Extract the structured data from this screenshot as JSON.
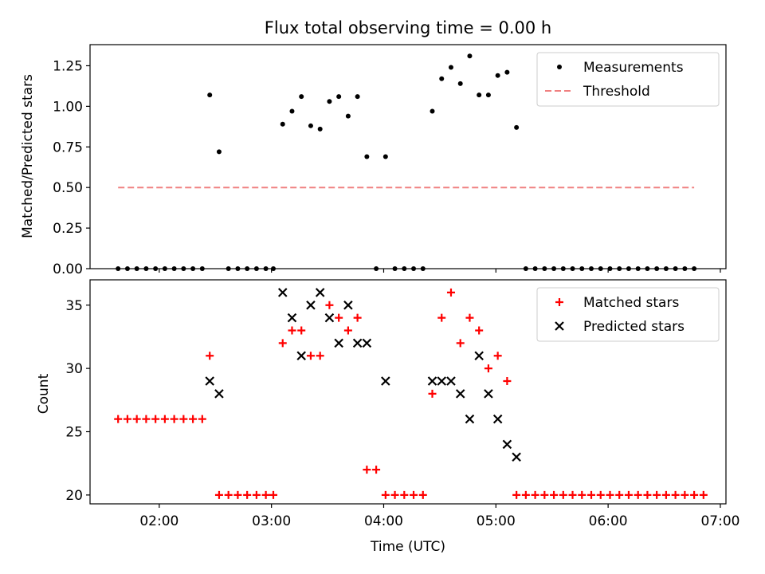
{
  "chart_data": [
    {
      "type": "scatter",
      "title": "Flux total observing time = 0.00 h",
      "xlabel": "",
      "ylabel": "Matched/Predicted stars",
      "xlim": [
        "01:23",
        "07:03"
      ],
      "ylim": [
        0,
        1.38
      ],
      "xticks": [
        "02:00",
        "03:00",
        "04:00",
        "05:00",
        "06:00",
        "07:00"
      ],
      "yticks": [
        0.0,
        0.25,
        0.5,
        0.75,
        1.0,
        1.25
      ],
      "ytick_labels": [
        "0.00",
        "0.25",
        "0.50",
        "0.75",
        "1.00",
        "1.25"
      ],
      "legend": "top-right",
      "grid": false,
      "series": [
        {
          "name": "Measurements",
          "marker": "dot",
          "color": "#000000",
          "points": [
            [
              "01:38",
              0
            ],
            [
              "01:43",
              0
            ],
            [
              "01:48",
              0
            ],
            [
              "01:53",
              0
            ],
            [
              "01:58",
              0
            ],
            [
              "02:03",
              0
            ],
            [
              "02:08",
              0
            ],
            [
              "02:13",
              0
            ],
            [
              "02:18",
              0
            ],
            [
              "02:23",
              0
            ],
            [
              "02:27",
              1.07
            ],
            [
              "02:32",
              0.72
            ],
            [
              "02:37",
              0
            ],
            [
              "02:42",
              0
            ],
            [
              "02:47",
              0
            ],
            [
              "02:52",
              0
            ],
            [
              "02:57",
              0
            ],
            [
              "03:01",
              0
            ],
            [
              "03:06",
              0.89
            ],
            [
              "03:11",
              0.97
            ],
            [
              "03:16",
              1.06
            ],
            [
              "03:21",
              0.88
            ],
            [
              "03:26",
              0.86
            ],
            [
              "03:31",
              1.03
            ],
            [
              "03:36",
              1.06
            ],
            [
              "03:41",
              0.94
            ],
            [
              "03:46",
              1.06
            ],
            [
              "03:51",
              0.69
            ],
            [
              "03:56",
              0
            ],
            [
              "04:01",
              0.69
            ],
            [
              "04:06",
              0
            ],
            [
              "04:11",
              0
            ],
            [
              "04:16",
              0
            ],
            [
              "04:21",
              0
            ],
            [
              "04:26",
              0.97
            ],
            [
              "04:31",
              1.17
            ],
            [
              "04:36",
              1.24
            ],
            [
              "04:41",
              1.14
            ],
            [
              "04:46",
              1.31
            ],
            [
              "04:51",
              1.07
            ],
            [
              "04:56",
              1.07
            ],
            [
              "05:01",
              1.19
            ],
            [
              "05:06",
              1.21
            ],
            [
              "05:11",
              0.87
            ],
            [
              "05:16",
              0
            ],
            [
              "05:21",
              0
            ],
            [
              "05:26",
              0
            ],
            [
              "05:31",
              0
            ],
            [
              "05:36",
              0
            ],
            [
              "05:41",
              0
            ],
            [
              "05:46",
              0
            ],
            [
              "05:51",
              0
            ],
            [
              "05:56",
              0
            ],
            [
              "06:01",
              0
            ],
            [
              "06:06",
              0
            ],
            [
              "06:11",
              0
            ],
            [
              "06:16",
              0
            ],
            [
              "06:21",
              0
            ],
            [
              "06:26",
              0
            ],
            [
              "06:31",
              0
            ],
            [
              "06:36",
              0
            ],
            [
              "06:41",
              0
            ],
            [
              "06:46",
              0
            ]
          ]
        },
        {
          "name": "Threshold",
          "type": "line",
          "style": "dashed",
          "color": "#f08080",
          "points": [
            [
              "01:38",
              0.5
            ],
            [
              "06:46",
              0.5
            ]
          ]
        }
      ]
    },
    {
      "type": "scatter",
      "title": "",
      "xlabel": "Time (UTC)",
      "ylabel": "Count",
      "xlim": [
        "01:23",
        "07:03"
      ],
      "ylim": [
        19.3,
        37.0
      ],
      "xticks": [
        "02:00",
        "03:00",
        "04:00",
        "05:00",
        "06:00",
        "07:00"
      ],
      "yticks": [
        20,
        25,
        30,
        35
      ],
      "legend": "top-right",
      "grid": false,
      "series": [
        {
          "name": "Matched stars",
          "marker": "plus",
          "color": "#ff0000",
          "points": [
            [
              "01:38",
              26
            ],
            [
              "01:43",
              26
            ],
            [
              "01:48",
              26
            ],
            [
              "01:53",
              26
            ],
            [
              "01:58",
              26
            ],
            [
              "02:03",
              26
            ],
            [
              "02:08",
              26
            ],
            [
              "02:13",
              26
            ],
            [
              "02:18",
              26
            ],
            [
              "02:23",
              26
            ],
            [
              "02:27",
              31
            ],
            [
              "02:32",
              20
            ],
            [
              "02:37",
              20
            ],
            [
              "02:42",
              20
            ],
            [
              "02:47",
              20
            ],
            [
              "02:52",
              20
            ],
            [
              "02:57",
              20
            ],
            [
              "03:01",
              20
            ],
            [
              "03:06",
              32
            ],
            [
              "03:11",
              33
            ],
            [
              "03:16",
              33
            ],
            [
              "03:21",
              31
            ],
            [
              "03:26",
              31
            ],
            [
              "03:31",
              35
            ],
            [
              "03:36",
              34
            ],
            [
              "03:41",
              33
            ],
            [
              "03:46",
              34
            ],
            [
              "03:51",
              22
            ],
            [
              "03:56",
              22
            ],
            [
              "04:01",
              20
            ],
            [
              "04:06",
              20
            ],
            [
              "04:11",
              20
            ],
            [
              "04:16",
              20
            ],
            [
              "04:21",
              20
            ],
            [
              "04:26",
              28
            ],
            [
              "04:31",
              34
            ],
            [
              "04:36",
              36
            ],
            [
              "04:41",
              32
            ],
            [
              "04:46",
              34
            ],
            [
              "04:51",
              33
            ],
            [
              "04:56",
              30
            ],
            [
              "05:01",
              31
            ],
            [
              "05:06",
              29
            ],
            [
              "05:11",
              20
            ],
            [
              "05:16",
              20
            ],
            [
              "05:21",
              20
            ],
            [
              "05:26",
              20
            ],
            [
              "05:31",
              20
            ],
            [
              "05:36",
              20
            ],
            [
              "05:41",
              20
            ],
            [
              "05:46",
              20
            ],
            [
              "05:51",
              20
            ],
            [
              "05:56",
              20
            ],
            [
              "06:01",
              20
            ],
            [
              "06:06",
              20
            ],
            [
              "06:11",
              20
            ],
            [
              "06:16",
              20
            ],
            [
              "06:21",
              20
            ],
            [
              "06:26",
              20
            ],
            [
              "06:31",
              20
            ],
            [
              "06:36",
              20
            ],
            [
              "06:41",
              20
            ],
            [
              "06:46",
              20
            ],
            [
              "06:51",
              20
            ]
          ]
        },
        {
          "name": "Predicted stars",
          "marker": "x",
          "color": "#000000",
          "points": [
            [
              "02:27",
              29
            ],
            [
              "02:32",
              28
            ],
            [
              "03:06",
              36
            ],
            [
              "03:11",
              34
            ],
            [
              "03:16",
              31
            ],
            [
              "03:21",
              35
            ],
            [
              "03:26",
              36
            ],
            [
              "03:31",
              34
            ],
            [
              "03:36",
              32
            ],
            [
              "03:41",
              35
            ],
            [
              "03:46",
              32
            ],
            [
              "03:51",
              32
            ],
            [
              "04:01",
              29
            ],
            [
              "04:26",
              29
            ],
            [
              "04:31",
              29
            ],
            [
              "04:36",
              29
            ],
            [
              "04:41",
              28
            ],
            [
              "04:46",
              26
            ],
            [
              "04:51",
              31
            ],
            [
              "04:56",
              28
            ],
            [
              "05:01",
              26
            ],
            [
              "05:06",
              24
            ],
            [
              "05:11",
              23
            ]
          ]
        }
      ]
    }
  ]
}
